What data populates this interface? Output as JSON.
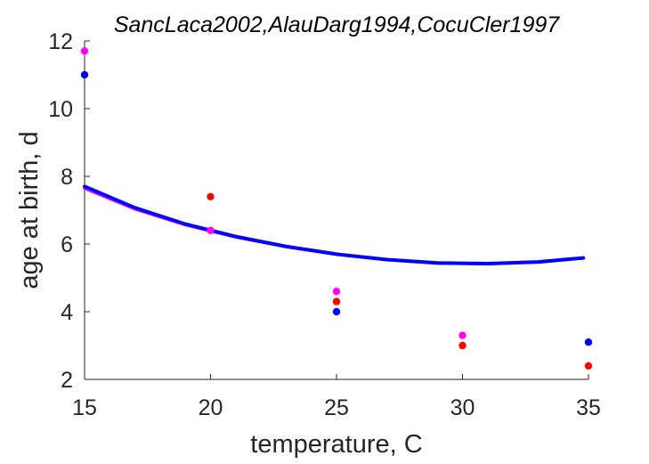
{
  "chart_data": {
    "type": "scatter",
    "title": "SancLaca2002,AlauDarg1994,CocuCler1997",
    "xlabel": "temperature, C",
    "ylabel": "age at birth, d",
    "xlim": [
      15,
      35
    ],
    "ylim": [
      2,
      12
    ],
    "xticks": [
      "15",
      "20",
      "25",
      "30",
      "35"
    ],
    "yticks": [
      "2",
      "4",
      "6",
      "8",
      "10",
      "12"
    ],
    "grid": false,
    "box": false,
    "series": [
      {
        "color": "#ff00ff",
        "x": [
          15,
          20,
          25,
          30
        ],
        "y": [
          11.7,
          6.4,
          4.6,
          3.3
        ]
      },
      {
        "color": "#0000ff",
        "x": [
          15,
          25,
          35
        ],
        "y": [
          11.0,
          4.0,
          3.1
        ]
      },
      {
        "color": "#ff0000",
        "x": [
          20,
          25,
          30,
          35
        ],
        "y": [
          7.4,
          4.3,
          3.0,
          2.4
        ]
      }
    ],
    "curves": [
      {
        "color": "#ff00ff",
        "x": [
          15,
          17,
          19,
          21,
          23,
          25,
          27,
          29,
          31,
          33,
          34.8
        ],
        "y": [
          7.64,
          7.03,
          6.56,
          6.2,
          5.91,
          5.69,
          5.53,
          5.43,
          5.41,
          5.46,
          5.58
        ]
      },
      {
        "color": "#0000ff",
        "x": [
          15,
          17,
          19,
          21,
          23,
          25,
          27,
          29,
          31,
          33,
          34.8
        ],
        "y": [
          7.7,
          7.07,
          6.59,
          6.22,
          5.93,
          5.7,
          5.54,
          5.44,
          5.42,
          5.47,
          5.59
        ]
      }
    ]
  }
}
